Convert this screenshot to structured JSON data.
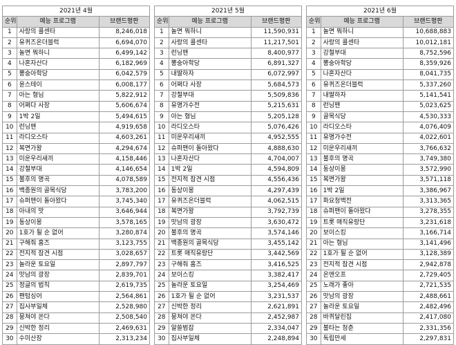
{
  "columns": {
    "rank": "순위",
    "program": "예능 프로그램",
    "index": "브랜드평판"
  },
  "months": [
    {
      "title": "2021년 4월",
      "rows": [
        {
          "rank": "1",
          "program": "사랑의 콜센타",
          "index": "8,246,018"
        },
        {
          "rank": "2",
          "program": "유퀴즈온더블럭",
          "index": "6,694,070"
        },
        {
          "rank": "3",
          "program": "놀면 뭐하니",
          "index": "6,499,142"
        },
        {
          "rank": "4",
          "program": "나혼자산다",
          "index": "6,182,969"
        },
        {
          "rank": "5",
          "program": "뽕숭아학당",
          "index": "6,042,579"
        },
        {
          "rank": "6",
          "program": "윤스테이",
          "index": "6,008,177"
        },
        {
          "rank": "7",
          "program": "아는 형님",
          "index": "5,822,912"
        },
        {
          "rank": "8",
          "program": "어쩌다 사장",
          "index": "5,606,674"
        },
        {
          "rank": "9",
          "program": "1박 2일",
          "index": "5,494,615"
        },
        {
          "rank": "10",
          "program": "런닝맨",
          "index": "4,919,658"
        },
        {
          "rank": "11",
          "program": "라디오스타",
          "index": "4,603,261"
        },
        {
          "rank": "12",
          "program": "복면가왕",
          "index": "4,294,674"
        },
        {
          "rank": "13",
          "program": "미운우리새끼",
          "index": "4,158,446"
        },
        {
          "rank": "14",
          "program": "강철부대",
          "index": "4,146,654"
        },
        {
          "rank": "15",
          "program": "불후의 명곡",
          "index": "4,078,589"
        },
        {
          "rank": "16",
          "program": "백종원의 골목식당",
          "index": "3,783,200"
        },
        {
          "rank": "17",
          "program": "슈퍼맨이 돌아왔다",
          "index": "3,745,340"
        },
        {
          "rank": "18",
          "program": "아내의 맛",
          "index": "3,646,944"
        },
        {
          "rank": "19",
          "program": "동상이몽",
          "index": "3,578,165"
        },
        {
          "rank": "20",
          "program": "1호가 될 순 없어",
          "index": "3,280,874"
        },
        {
          "rank": "21",
          "program": "구해줘 홈즈",
          "index": "3,123,755"
        },
        {
          "rank": "22",
          "program": "전지적 참견 시점",
          "index": "3,028,657"
        },
        {
          "rank": "23",
          "program": "놀라운 토요일",
          "index": "2,897,797"
        },
        {
          "rank": "24",
          "program": "맛남의 광장",
          "index": "2,839,701"
        },
        {
          "rank": "25",
          "program": "정글의 법칙",
          "index": "2,619,735"
        },
        {
          "rank": "26",
          "program": "팬텀싱어",
          "index": "2,564,861"
        },
        {
          "rank": "27",
          "program": "집사부일체",
          "index": "2,528,980"
        },
        {
          "rank": "28",
          "program": "뭉쳐야 쏜다",
          "index": "2,508,540"
        },
        {
          "rank": "29",
          "program": "신박한 정리",
          "index": "2,469,631"
        },
        {
          "rank": "30",
          "program": "수미산장",
          "index": "2,313,234"
        }
      ]
    },
    {
      "title": "2021년 5월",
      "rows": [
        {
          "rank": "1",
          "program": "놀면 뭐하니",
          "index": "11,590,931"
        },
        {
          "rank": "2",
          "program": "사랑의 콜센타",
          "index": "11,217,501"
        },
        {
          "rank": "3",
          "program": "런닝맨",
          "index": "8,400,977"
        },
        {
          "rank": "4",
          "program": "뽕숭아학당",
          "index": "6,891,327"
        },
        {
          "rank": "5",
          "program": "내딸하자",
          "index": "6,072,997"
        },
        {
          "rank": "6",
          "program": "어쩌다 사장",
          "index": "5,684,573"
        },
        {
          "rank": "7",
          "program": "강철부대",
          "index": "5,509,836"
        },
        {
          "rank": "8",
          "program": "유명가수전",
          "index": "5,215,631"
        },
        {
          "rank": "9",
          "program": "아는 형님",
          "index": "5,205,128"
        },
        {
          "rank": "10",
          "program": "라디오스타",
          "index": "5,076,426"
        },
        {
          "rank": "11",
          "program": "미운우리새끼",
          "index": "4,952,555"
        },
        {
          "rank": "12",
          "program": "슈퍼맨이 돌아왔다",
          "index": "4,888,630"
        },
        {
          "rank": "13",
          "program": "나혼자산다",
          "index": "4,704,007"
        },
        {
          "rank": "14",
          "program": "1박 2일",
          "index": "4,594,809"
        },
        {
          "rank": "15",
          "program": "전지적 참견 시점",
          "index": "4,556,436"
        },
        {
          "rank": "16",
          "program": "동상이몽",
          "index": "4,297,439"
        },
        {
          "rank": "17",
          "program": "유퀴즈온더블럭",
          "index": "4,062,515"
        },
        {
          "rank": "18",
          "program": "복면가왕",
          "index": "3,792,739"
        },
        {
          "rank": "19",
          "program": "맛남의 광장",
          "index": "3,630,472"
        },
        {
          "rank": "20",
          "program": "불후의 명곡",
          "index": "3,574,146"
        },
        {
          "rank": "21",
          "program": "백종원의 골목식당",
          "index": "3,455,142"
        },
        {
          "rank": "22",
          "program": "트롯 매직유랑단",
          "index": "3,442,569"
        },
        {
          "rank": "23",
          "program": "구해줘 홈즈",
          "index": "3,416,525"
        },
        {
          "rank": "24",
          "program": "보이스킹",
          "index": "3,382,417"
        },
        {
          "rank": "25",
          "program": "놀라운 토요일",
          "index": "3,254,469"
        },
        {
          "rank": "26",
          "program": "1호가 될 순 없어",
          "index": "3,231,537"
        },
        {
          "rank": "27",
          "program": "신박한 정리",
          "index": "2,621,891"
        },
        {
          "rank": "28",
          "program": "뭉쳐야 쏜다",
          "index": "2,452,987"
        },
        {
          "rank": "29",
          "program": "알쓸범잡",
          "index": "2,334,047"
        },
        {
          "rank": "30",
          "program": "집사부일체",
          "index": "2,248,894"
        }
      ]
    },
    {
      "title": "2021년 6월",
      "rows": [
        {
          "rank": "1",
          "program": "놀면 뭐하니",
          "index": "10,688,883"
        },
        {
          "rank": "2",
          "program": "사랑의 콜센타",
          "index": "10,012,181"
        },
        {
          "rank": "3",
          "program": "강철부대",
          "index": "8,752,596"
        },
        {
          "rank": "4",
          "program": "뽕숭아학당",
          "index": "8,359,926"
        },
        {
          "rank": "5",
          "program": "나혼자산다",
          "index": "8,041,735"
        },
        {
          "rank": "6",
          "program": "유퀴즈온더블럭",
          "index": "5,337,260"
        },
        {
          "rank": "7",
          "program": "내딸하자",
          "index": "5,141,541"
        },
        {
          "rank": "8",
          "program": "런닝맨",
          "index": "5,023,625"
        },
        {
          "rank": "9",
          "program": "골목식당",
          "index": "4,530,333"
        },
        {
          "rank": "10",
          "program": "라디오스타",
          "index": "4,076,409"
        },
        {
          "rank": "11",
          "program": "유명가수전",
          "index": "4,022,601"
        },
        {
          "rank": "12",
          "program": "미운우리새끼",
          "index": "3,766,632"
        },
        {
          "rank": "13",
          "program": "불후의 명곡",
          "index": "3,749,380"
        },
        {
          "rank": "14",
          "program": "동상이몽",
          "index": "3,572,990"
        },
        {
          "rank": "15",
          "program": "복면가왕",
          "index": "3,571,118"
        },
        {
          "rank": "16",
          "program": "1박 2일",
          "index": "3,386,967"
        },
        {
          "rank": "17",
          "program": "화요청백전",
          "index": "3,313,365"
        },
        {
          "rank": "18",
          "program": "슈퍼맨이 돌아왔다",
          "index": "3,278,355"
        },
        {
          "rank": "19",
          "program": "트롯 매직유랑단",
          "index": "3,231,618"
        },
        {
          "rank": "20",
          "program": "보이스킹",
          "index": "3,166,714"
        },
        {
          "rank": "21",
          "program": "아는 형님",
          "index": "3,141,496"
        },
        {
          "rank": "22",
          "program": "1호가 될 순 없어",
          "index": "3,128,389"
        },
        {
          "rank": "23",
          "program": "전지적 참견 시점",
          "index": "2,942,878"
        },
        {
          "rank": "24",
          "program": "온앤오프",
          "index": "2,729,405"
        },
        {
          "rank": "25",
          "program": "노래가 좋아",
          "index": "2,721,535"
        },
        {
          "rank": "26",
          "program": "맛남의 광장",
          "index": "2,488,661"
        },
        {
          "rank": "27",
          "program": "놀라운 토요일",
          "index": "2,482,496"
        },
        {
          "rank": "28",
          "program": "바퀴달린집",
          "index": "2,417,080"
        },
        {
          "rank": "29",
          "program": "불타는 청춘",
          "index": "2,331,356"
        },
        {
          "rank": "30",
          "program": "독립만세",
          "index": "2,297,831"
        }
      ]
    }
  ]
}
